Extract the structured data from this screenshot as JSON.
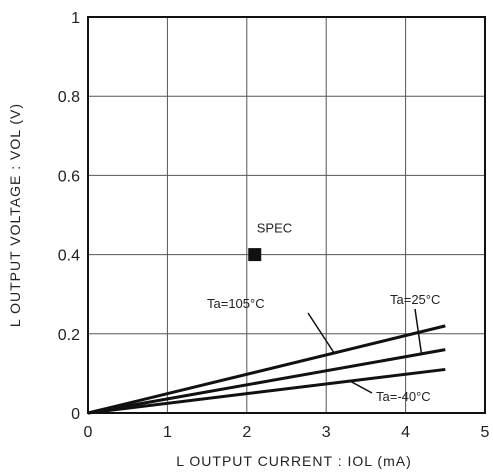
{
  "chart_data": {
    "type": "line",
    "xlabel": "L OUTPUT CURRENT : IOL (mA)",
    "ylabel": "L OUTPUT VOLTAGE : VOL (V)",
    "xlim": [
      0,
      5
    ],
    "ylim": [
      0,
      1
    ],
    "xticks": [
      "0",
      "1",
      "2",
      "3",
      "4",
      "5"
    ],
    "yticks": [
      "0",
      "0.2",
      "0.4",
      "0.6",
      "0.8",
      "1"
    ],
    "grid": true,
    "series": [
      {
        "name": "Ta=105°C",
        "x": [
          0,
          4.5
        ],
        "y": [
          0,
          0.22
        ]
      },
      {
        "name": "Ta=25°C",
        "x": [
          0,
          4.5
        ],
        "y": [
          0,
          0.16
        ]
      },
      {
        "name": "Ta=-40°C",
        "x": [
          0,
          4.5
        ],
        "y": [
          0,
          0.11
        ]
      }
    ],
    "spec_point": {
      "label": "SPEC",
      "x": 2.1,
      "y": 0.4
    }
  }
}
